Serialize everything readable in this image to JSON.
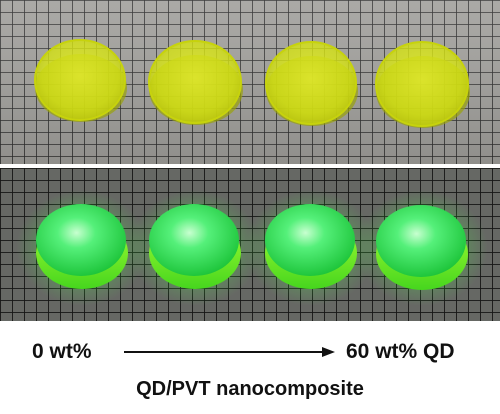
{
  "photo_panels": [
    {
      "id": "ambient-light",
      "disk_count": 4,
      "background": "#9d9c98",
      "grid_color": "#2e2e2e",
      "disk_color": "#dcea16"
    },
    {
      "id": "uv-illumination",
      "disk_count": 4,
      "background": "#5f615d",
      "grid_color": "#151615",
      "disk_color": "#2fe84a"
    }
  ],
  "labels": {
    "start": "0 wt%",
    "end": "60 wt% QD",
    "subtitle": "QD/PVT nanocomposite"
  }
}
